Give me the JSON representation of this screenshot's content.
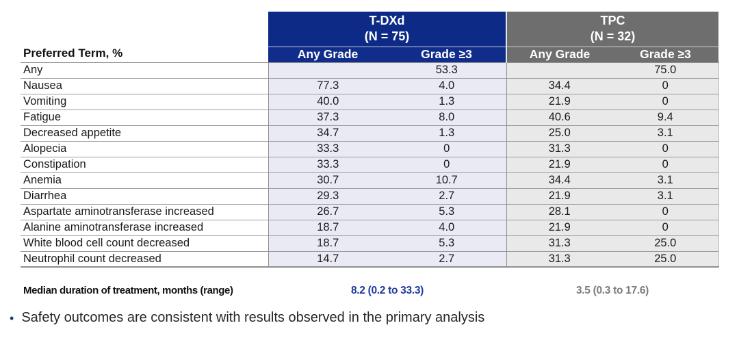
{
  "table": {
    "corner_label": "Preferred Term, %",
    "groups": [
      {
        "name": "T-DXd",
        "n_label": "(N = 75)",
        "columns": [
          "Any Grade",
          "Grade ≥3"
        ]
      },
      {
        "name": "TPC",
        "n_label": "(N = 32)",
        "columns": [
          "Any Grade",
          "Grade ≥3"
        ]
      }
    ],
    "rows": [
      {
        "term": "Any",
        "values": [
          "",
          "53.3",
          "",
          "75.0"
        ]
      },
      {
        "term": "Nausea",
        "values": [
          "77.3",
          "4.0",
          "34.4",
          "0"
        ]
      },
      {
        "term": "Vomiting",
        "values": [
          "40.0",
          "1.3",
          "21.9",
          "0"
        ]
      },
      {
        "term": "Fatigue",
        "values": [
          "37.3",
          "8.0",
          "40.6",
          "9.4"
        ]
      },
      {
        "term": "Decreased appetite",
        "values": [
          "34.7",
          "1.3",
          "25.0",
          "3.1"
        ]
      },
      {
        "term": "Alopecia",
        "values": [
          "33.3",
          "0",
          "31.3",
          "0"
        ]
      },
      {
        "term": "Constipation",
        "values": [
          "33.3",
          "0",
          "21.9",
          "0"
        ]
      },
      {
        "term": "Anemia",
        "values": [
          "30.7",
          "10.7",
          "34.4",
          "3.1"
        ]
      },
      {
        "term": "Diarrhea",
        "values": [
          "29.3",
          "2.7",
          "21.9",
          "3.1"
        ]
      },
      {
        "term": "Aspartate aminotransferase increased",
        "values": [
          "26.7",
          "5.3",
          "28.1",
          "0"
        ]
      },
      {
        "term": "Alanine aminotransferase increased",
        "values": [
          "18.7",
          "4.0",
          "21.9",
          "0"
        ]
      },
      {
        "term": "White blood cell count decreased",
        "values": [
          "18.7",
          "5.3",
          "31.3",
          "25.0"
        ]
      },
      {
        "term": "Neutrophil count decreased",
        "values": [
          "14.7",
          "2.7",
          "31.3",
          "25.0"
        ]
      }
    ]
  },
  "footer": {
    "label": "Median duration of treatment, months (range)",
    "tdxd_value": "8.2 (0.2 to 33.3)",
    "tpc_value": "3.5 (0.3 to 17.6)"
  },
  "bullet": {
    "marker": "•",
    "text": "Safety outcomes are consistent with results observed in the primary analysis"
  },
  "colors": {
    "tdxd_header": "#0d2b86",
    "tpc_header": "#6e6e6e",
    "tdxd_cell_bg": "#eaeaf4",
    "tpc_cell_bg": "#e9e9e9",
    "tdxd_value_text": "#1e3a9c",
    "tpc_value_text": "#7c7c7c"
  }
}
